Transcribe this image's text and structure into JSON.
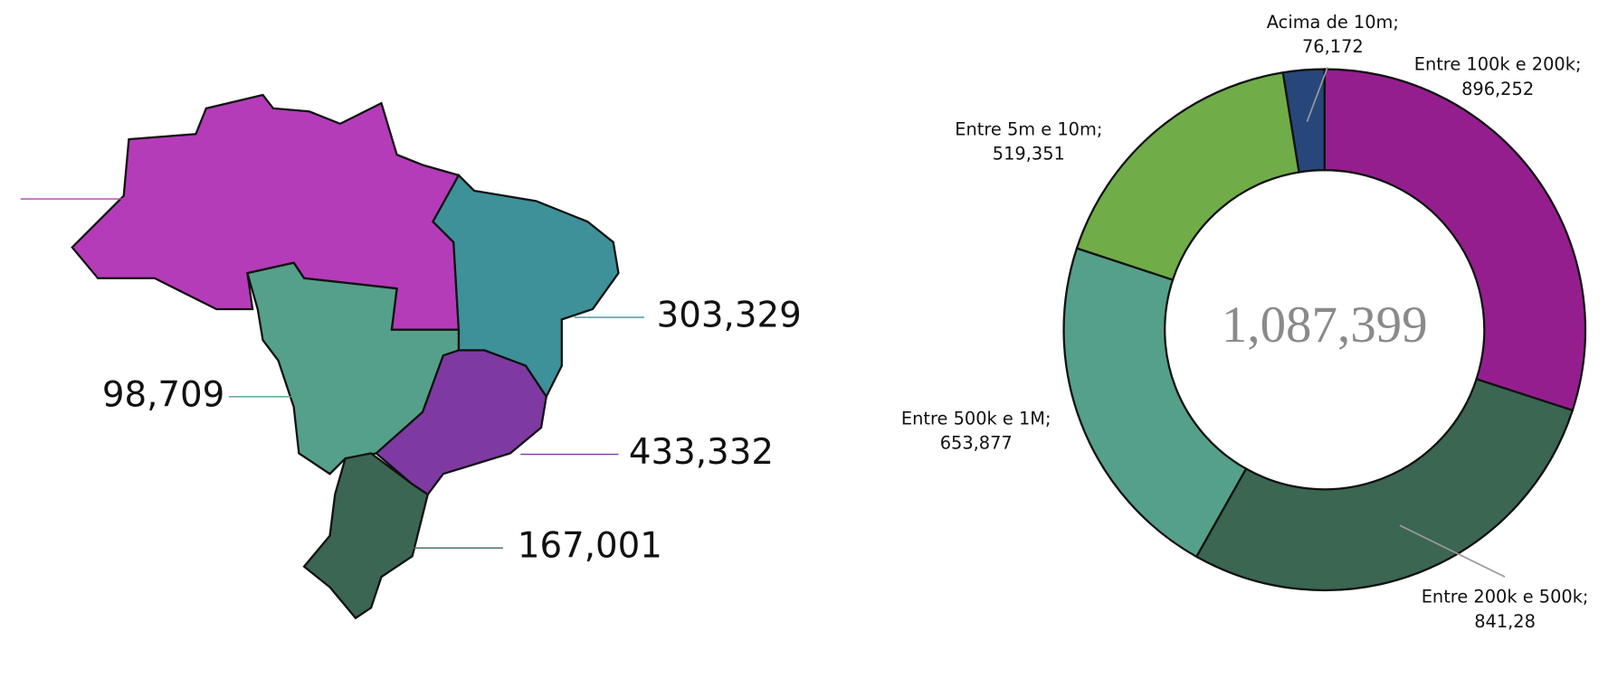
{
  "chart_data": [
    {
      "type": "map",
      "values": [
        null,
        303329,
        98709,
        433332,
        167001
      ],
      "value_labels": [
        null,
        "303,329",
        "98,709",
        "433,332",
        "167,001"
      ],
      "colors": [
        "#b43cb9",
        "#3e9199",
        "#55a08a",
        "#7e3aa2",
        "#3a6653"
      ]
    },
    {
      "type": "donut",
      "categories": [
        "Entre 100k e 200k;",
        "Entre 200k e 500k;",
        "Entre 500k e 1M;",
        "Entre 5m e 10m;",
        "Acima de 10m;"
      ],
      "values": [
        896.252,
        841.28,
        653.877,
        519.351,
        76.172
      ],
      "value_labels": [
        "896,252",
        "841,28",
        "653,877",
        "519,351",
        "76,172"
      ],
      "colors": [
        "#951e8f",
        "#3a6652",
        "#55a08a",
        "#70ac48",
        "#27477a"
      ],
      "center": {
        "value": 1087399,
        "label": "1,087,399"
      }
    }
  ]
}
